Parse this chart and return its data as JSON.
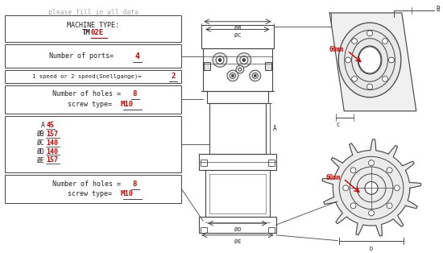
{
  "bg_color": "#ffffff",
  "text_color": "#222222",
  "red_color": "#cc0000",
  "line_color": "#444444",
  "gray_color": "#aaaaaa",
  "title_note": "please fill in all data",
  "box1_line1": "MACHINE TYPE:",
  "box1_black": "TM",
  "box1_red": "02E",
  "box2_text": "Number of ports=",
  "box2_value": "4",
  "box3_text": "1 speed or 2 speed(Snellgange)=",
  "box3_value": "2",
  "box4_l1_black": "Number of holes =",
  "box4_l1_red": "8",
  "box4_l2_black": "screw type=",
  "box4_l2_red": "M10",
  "box5_entries": [
    [
      "A",
      "45"
    ],
    [
      "ØB",
      "157"
    ],
    [
      "ØC",
      "140"
    ],
    [
      "ØD",
      "140"
    ],
    [
      "ØE",
      "157"
    ]
  ],
  "box6_l1_black": "Number of holes =",
  "box6_l1_red": "8",
  "box6_l2_black": "screw type=",
  "box6_l2_red": "M10",
  "label_60mm": "60mm",
  "dim_B": "ØB",
  "dim_C": "ØC",
  "dim_D": "ØD",
  "dim_E": "ØE",
  "dim_A": "A",
  "dim_B_top": "B"
}
